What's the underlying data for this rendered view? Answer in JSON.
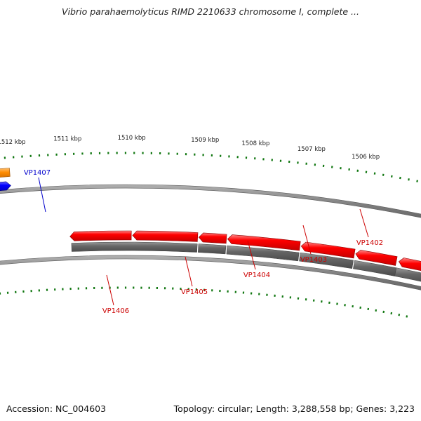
{
  "title": "Vibrio parahaemolyticus RIMD 2210633 chromosome I, complete ...",
  "footer": {
    "accession": "Accession: NC_004603",
    "summary": "Topology: circular; Length: 3,288,558 bp; Genes: 3,223"
  },
  "ruler": {
    "labels": [
      "1506 kbp",
      "1507 kbp",
      "1508 kbp",
      "1509 kbp",
      "1510 kbp",
      "1511 kbp",
      "1512 kbp"
    ]
  },
  "genes": [
    {
      "name": "VP1402",
      "color": "#cc0000"
    },
    {
      "name": "VP1403",
      "color": "#cc0000"
    },
    {
      "name": "VP1404",
      "color": "#cc0000"
    },
    {
      "name": "VP1405",
      "color": "#cc0000"
    },
    {
      "name": "VP1406",
      "color": "#cc0000"
    },
    {
      "name": "VP1407",
      "color": "#0000cc"
    }
  ],
  "colors": {
    "cds_reverse": "#ff0000",
    "cds_forward": "#0000ff",
    "gene_bar": "#666666",
    "highlight": "#ff8c00",
    "backbone": "#808080",
    "ticks": "#117711"
  }
}
